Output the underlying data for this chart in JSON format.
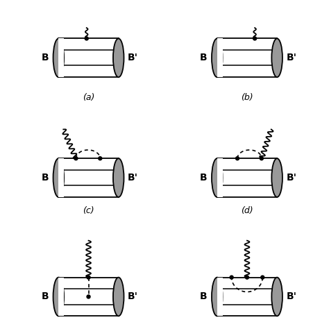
{
  "bg_color": "#ffffff",
  "diagram_labels": [
    "(a)",
    "(b)",
    "(c)",
    "(d)"
  ],
  "B_label": "B",
  "Bp_label": "B'",
  "barrel_fill": "#999999",
  "barrel_lw": 1.3
}
